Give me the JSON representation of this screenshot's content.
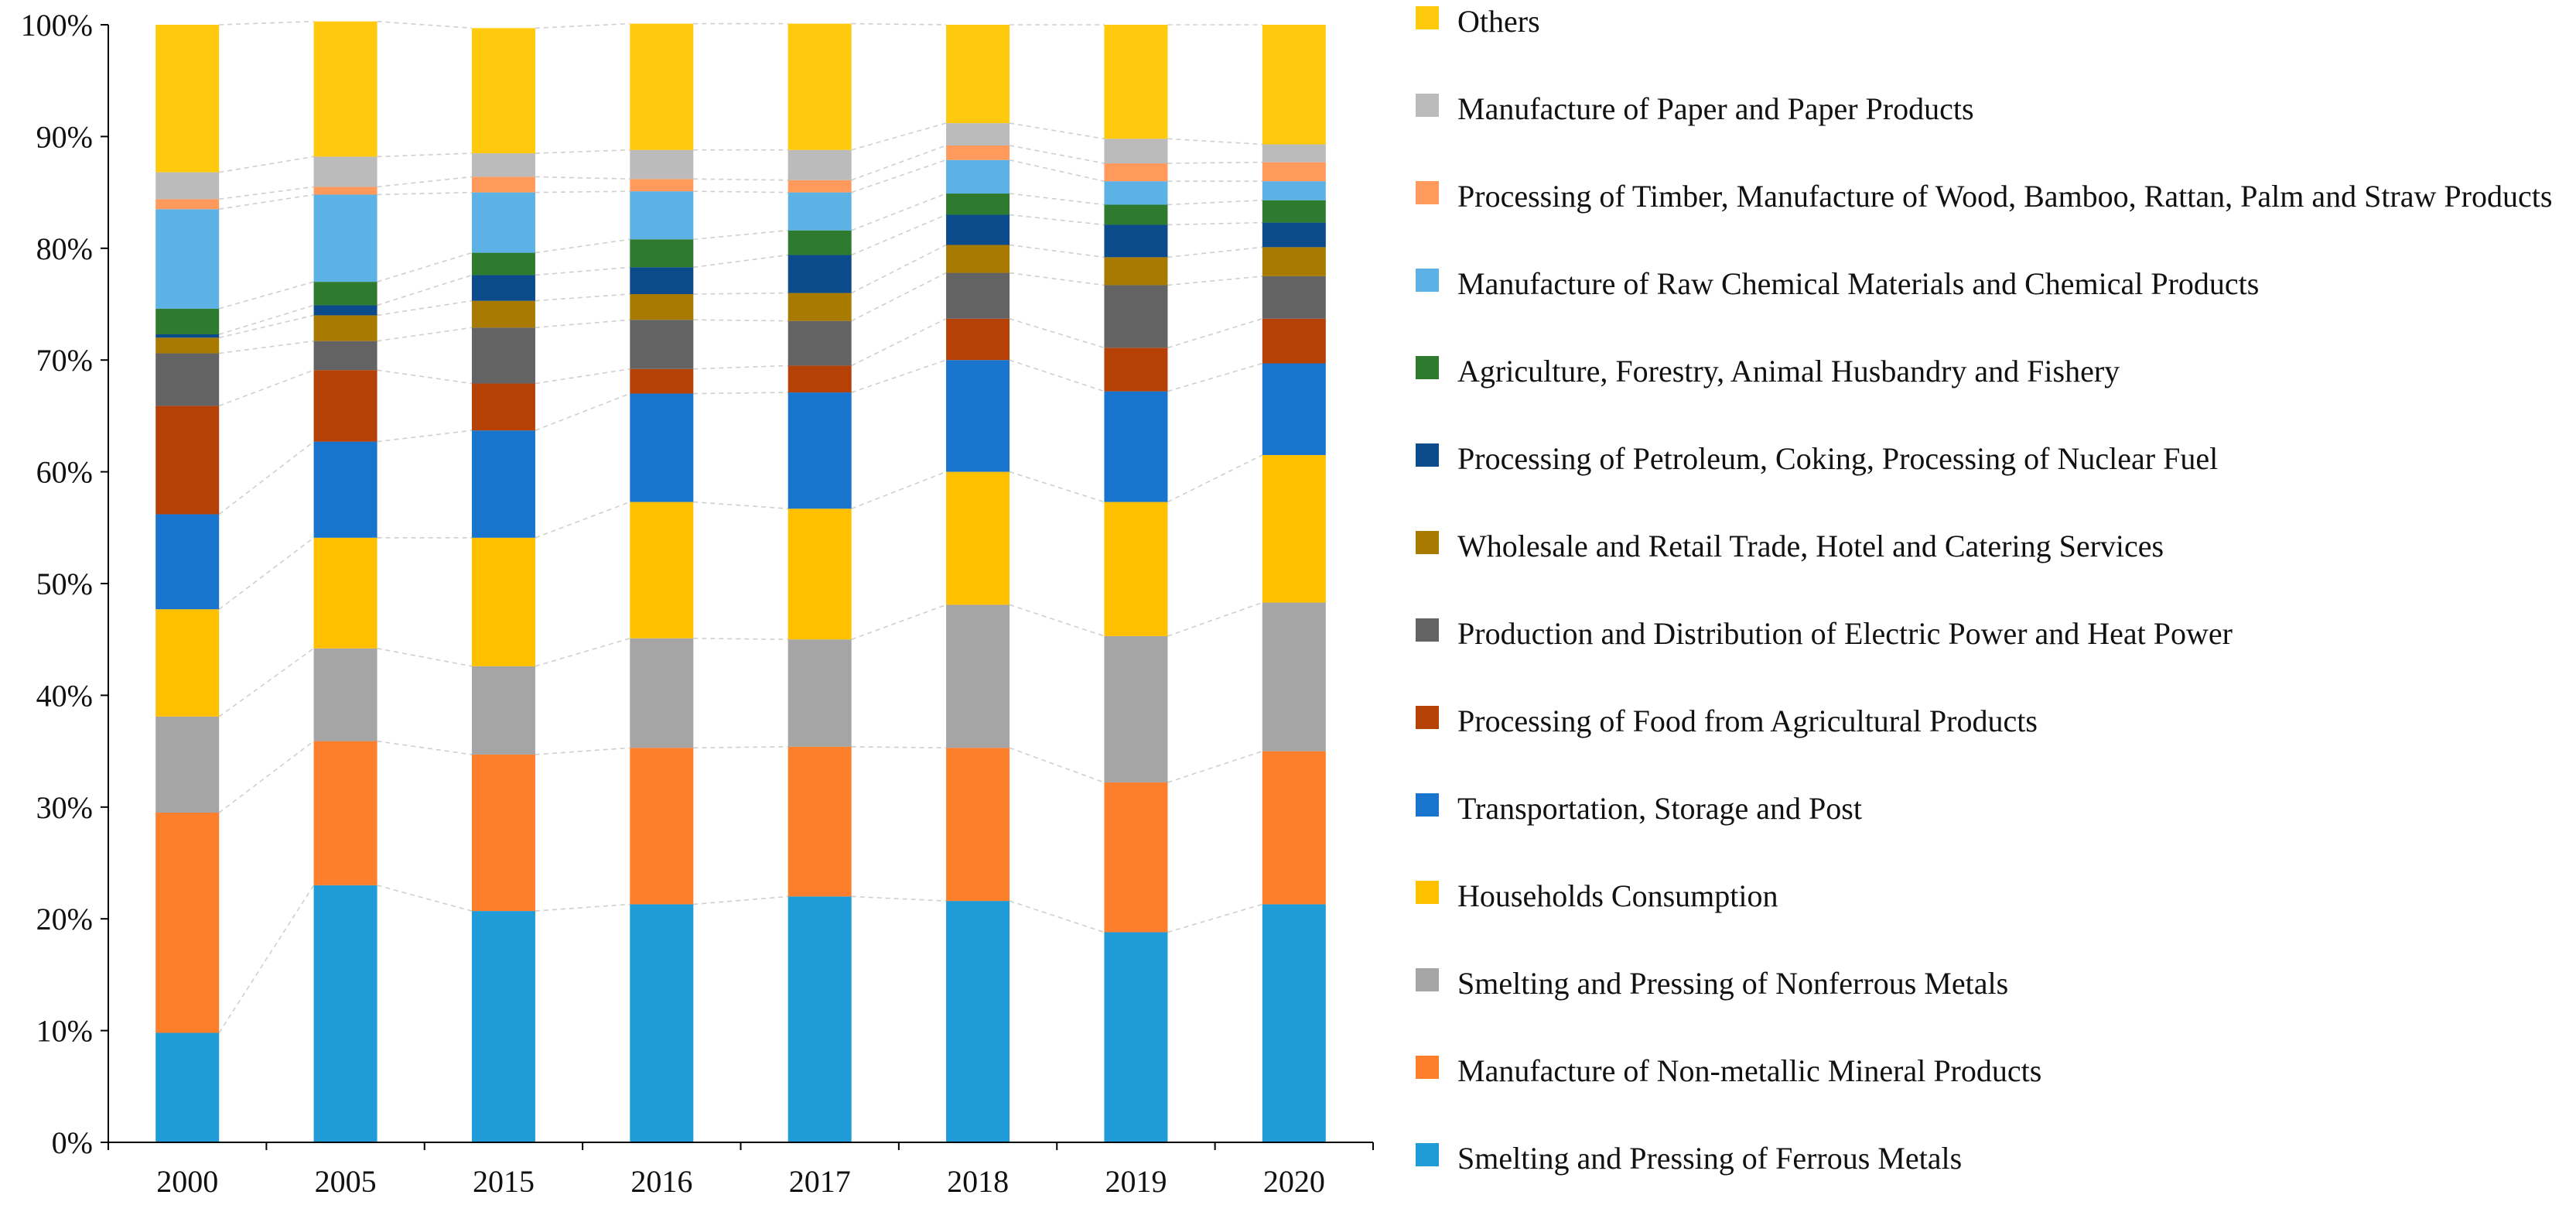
{
  "chart_data": {
    "type": "bar",
    "stacked": true,
    "categories": [
      "2000",
      "2005",
      "2015",
      "2016",
      "2017",
      "2018",
      "2019",
      "2020"
    ],
    "yticks": [
      "0%",
      "10%",
      "20%",
      "30%",
      "40%",
      "50%",
      "60%",
      "70%",
      "80%",
      "90%",
      "100%"
    ],
    "ylim": [
      0,
      100
    ],
    "ylabel": "",
    "xlabel": "",
    "title": "",
    "connector_lines": true,
    "legend_position": "right",
    "series": [
      {
        "name": "Smelting and Pressing of Ferrous Metals",
        "color": "#1f9cd8",
        "values": [
          9.8,
          23.0,
          20.7,
          21.3,
          22.0,
          21.6,
          18.8,
          21.3
        ]
      },
      {
        "name": "Manufacture of Non-metallic Mineral Products",
        "color": "#fd7f2c",
        "values": [
          19.7,
          12.9,
          14.0,
          14.0,
          13.4,
          13.7,
          13.4,
          13.7
        ]
      },
      {
        "name": "Smelting and Pressing of Nonferrous Metals",
        "color": "#a5a5a5",
        "values": [
          8.6,
          8.3,
          7.9,
          9.8,
          9.6,
          12.8,
          13.1,
          13.3
        ]
      },
      {
        "name": "Households  Consumption",
        "color": "#ffc000",
        "values": [
          9.6,
          9.9,
          11.5,
          12.2,
          11.7,
          11.9,
          12.0,
          13.2
        ]
      },
      {
        "name": "Transportation, Storage and Post",
        "color": "#1874cd",
        "values": [
          8.5,
          8.6,
          9.6,
          9.7,
          10.4,
          10.0,
          9.9,
          8.2
        ]
      },
      {
        "name": "Processing of Food from Agricultural Products",
        "color": "#b54107",
        "values": [
          9.7,
          6.4,
          4.2,
          2.2,
          2.4,
          3.7,
          3.9,
          4.0
        ]
      },
      {
        "name": "Production and  Distribution of Electric Power and Heat Power",
        "color": "#636363",
        "values": [
          4.7,
          2.6,
          5.0,
          4.4,
          4.0,
          4.1,
          5.6,
          3.8
        ]
      },
      {
        "name": "Wholesale and Retail Trade, Hotel and Catering Services",
        "color": "#a87a00",
        "values": [
          1.4,
          2.3,
          2.4,
          2.3,
          2.5,
          2.5,
          2.5,
          2.6
        ]
      },
      {
        "name": "Processing of Petroleum, Coking, Processing of Nuclear Fuel",
        "color": "#0b4a8b",
        "values": [
          0.3,
          0.9,
          2.3,
          2.4,
          3.4,
          2.7,
          2.9,
          2.2
        ]
      },
      {
        "name": "Agriculture, Forestry, Animal Husbandry and Fishery",
        "color": "#2e7b30",
        "values": [
          2.3,
          2.1,
          2.0,
          2.5,
          2.2,
          1.9,
          1.8,
          2.0
        ]
      },
      {
        "name": "Manufacture of Raw Chemical Materials and Chemical Products",
        "color": "#5db2e5",
        "values": [
          8.9,
          7.8,
          5.4,
          4.3,
          3.4,
          3.0,
          2.1,
          1.7
        ]
      },
      {
        "name": "Processing of Timber, Manufacture of Wood, Bamboo, Rattan, Palm and Straw Products",
        "color": "#ff9a5c",
        "values": [
          0.9,
          0.7,
          1.4,
          1.1,
          1.1,
          1.3,
          1.6,
          1.7
        ]
      },
      {
        "name": "Manufacture of Paper and Paper Products",
        "color": "#bbbbbb",
        "values": [
          2.4,
          2.7,
          2.1,
          2.6,
          2.7,
          2.0,
          2.2,
          1.6
        ]
      },
      {
        "name": "Others",
        "color": "#ffc90e",
        "values": [
          13.2,
          12.1,
          11.2,
          11.3,
          11.3,
          8.8,
          10.2,
          10.7
        ]
      }
    ],
    "legend_order": [
      13,
      12,
      11,
      10,
      9,
      8,
      7,
      6,
      5,
      4,
      3,
      2,
      1,
      0
    ]
  }
}
